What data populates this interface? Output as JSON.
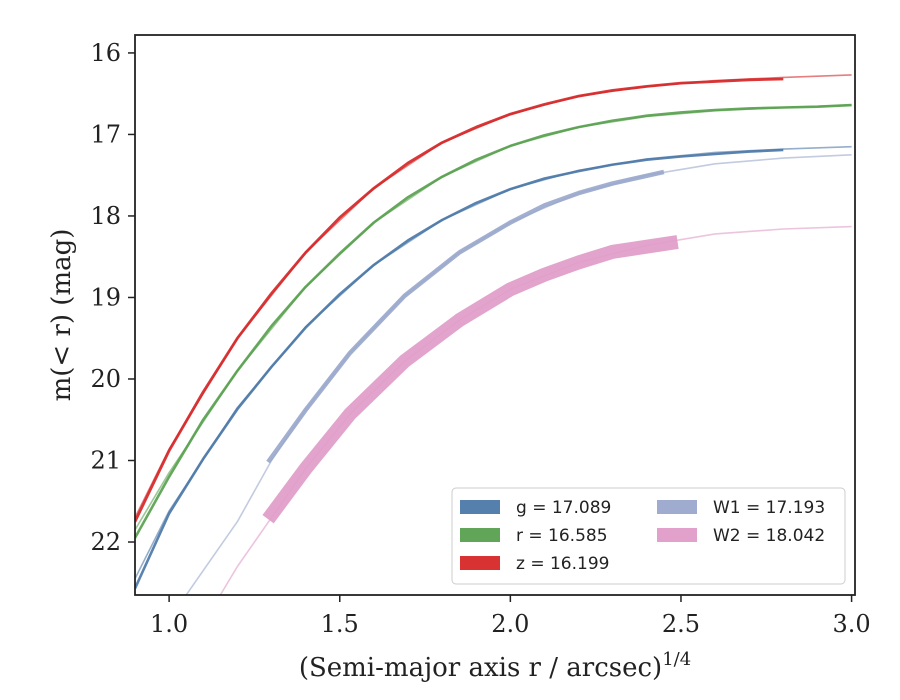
{
  "chart_data": {
    "type": "line",
    "xlabel": "(Semi-major axis r / arcsec)",
    "xlabel_sup": "1/4",
    "ylabel": "m(< r) (mag)",
    "xlim": [
      0.9,
      3.01
    ],
    "ylim": [
      22.65,
      15.78
    ],
    "y_inverted": true,
    "x_ticks": [
      1.0,
      1.5,
      2.0,
      2.5,
      3.0
    ],
    "x_tick_labels": [
      "1.0",
      "1.5",
      "2.0",
      "2.5",
      "3.0"
    ],
    "y_ticks": [
      16,
      17,
      18,
      19,
      20,
      21,
      22
    ],
    "y_tick_labels": [
      "16",
      "17",
      "18",
      "19",
      "20",
      "21",
      "22"
    ],
    "grid": false,
    "legend_position": "lower-right",
    "series": [
      {
        "name": "g = 17.089",
        "color": "#4c78a8",
        "measured": {
          "x": [
            0.9,
            1.0,
            1.1,
            1.2,
            1.3,
            1.4,
            1.5,
            1.6,
            1.7,
            1.8,
            1.9,
            2.0,
            2.1,
            2.2,
            2.3,
            2.4,
            2.5,
            2.6,
            2.7,
            2.8
          ],
          "y": [
            22.57,
            21.65,
            20.98,
            20.37,
            19.85,
            19.37,
            18.96,
            18.6,
            18.3,
            18.05,
            17.84,
            17.67,
            17.54,
            17.45,
            17.37,
            17.31,
            17.27,
            17.24,
            17.21,
            17.19
          ]
        },
        "model": {
          "x": [
            0.9,
            1.0,
            1.2,
            1.4,
            1.6,
            1.8,
            2.0,
            2.2,
            2.4,
            2.6,
            2.8,
            3.0
          ],
          "y": [
            22.45,
            21.62,
            20.35,
            19.36,
            18.6,
            18.05,
            17.67,
            17.44,
            17.3,
            17.22,
            17.18,
            17.15
          ]
        }
      },
      {
        "name": "r = 16.585",
        "color": "#59a14f",
        "measured": {
          "x": [
            0.9,
            1.0,
            1.1,
            1.2,
            1.3,
            1.4,
            1.5,
            1.6,
            1.7,
            1.8,
            1.9,
            2.0,
            2.1,
            2.2,
            2.3,
            2.4,
            2.5,
            2.6,
            2.7,
            2.8,
            2.9,
            3.0
          ],
          "y": [
            21.95,
            21.2,
            20.5,
            19.9,
            19.35,
            18.87,
            18.46,
            18.08,
            17.77,
            17.52,
            17.31,
            17.14,
            17.01,
            16.91,
            16.83,
            16.77,
            16.73,
            16.7,
            16.68,
            16.67,
            16.66,
            16.64
          ]
        },
        "model": {
          "x": [
            0.9,
            1.0,
            1.2,
            1.4,
            1.6,
            1.8,
            2.0,
            2.2,
            2.4,
            2.6,
            2.8,
            3.0
          ],
          "y": [
            21.85,
            21.15,
            19.9,
            18.87,
            18.08,
            17.52,
            17.14,
            16.91,
            16.78,
            16.71,
            16.67,
            16.64
          ]
        }
      },
      {
        "name": "z = 16.199",
        "color": "#d62728",
        "measured": {
          "x": [
            0.9,
            1.0,
            1.1,
            1.2,
            1.3,
            1.4,
            1.5,
            1.6,
            1.7,
            1.8,
            1.9,
            2.0,
            2.1,
            2.2,
            2.3,
            2.4,
            2.5,
            2.6,
            2.7,
            2.8
          ],
          "y": [
            21.75,
            20.88,
            20.16,
            19.5,
            18.95,
            18.45,
            18.02,
            17.66,
            17.35,
            17.1,
            16.91,
            16.75,
            16.63,
            16.53,
            16.46,
            16.41,
            16.37,
            16.35,
            16.33,
            16.32
          ]
        },
        "model": {
          "x": [
            0.9,
            1.0,
            1.2,
            1.4,
            1.6,
            1.8,
            2.0,
            2.2,
            2.4,
            2.6,
            2.8,
            3.0
          ],
          "y": [
            21.7,
            20.86,
            19.5,
            18.45,
            17.66,
            17.1,
            16.75,
            16.53,
            16.41,
            16.34,
            16.3,
            16.27
          ]
        }
      },
      {
        "name": "W1 = 17.193",
        "color": "#9aa8cc",
        "measured": {
          "x": [
            1.29,
            1.4,
            1.53,
            1.69,
            1.85,
            2.0,
            2.1,
            2.2,
            2.3,
            2.45
          ],
          "y": [
            21.02,
            20.38,
            19.68,
            18.98,
            18.45,
            18.08,
            17.87,
            17.72,
            17.6,
            17.46
          ]
        },
        "model": {
          "x": [
            1.05,
            1.2,
            1.3,
            1.4,
            1.53,
            1.69,
            1.85,
            2.0,
            2.2,
            2.4,
            2.6,
            2.8,
            3.0
          ],
          "y": [
            22.65,
            21.75,
            21.0,
            20.38,
            19.68,
            18.98,
            18.45,
            18.08,
            17.72,
            17.5,
            17.36,
            17.29,
            17.25
          ]
        }
      },
      {
        "name": "W2 = 18.042",
        "color": "#e09cc8",
        "measured": {
          "x": [
            1.29,
            1.4,
            1.53,
            1.69,
            1.85,
            2.0,
            2.1,
            2.2,
            2.3,
            2.49
          ],
          "y": [
            21.72,
            21.1,
            20.43,
            19.78,
            19.28,
            18.9,
            18.72,
            18.57,
            18.44,
            18.32
          ]
        },
        "model": {
          "x": [
            1.15,
            1.2,
            1.3,
            1.4,
            1.53,
            1.69,
            1.85,
            2.0,
            2.2,
            2.4,
            2.6,
            2.8,
            3.0
          ],
          "y": [
            22.65,
            22.3,
            21.7,
            21.1,
            20.43,
            19.78,
            19.28,
            18.9,
            18.57,
            18.36,
            18.22,
            18.16,
            18.13
          ]
        }
      }
    ]
  }
}
